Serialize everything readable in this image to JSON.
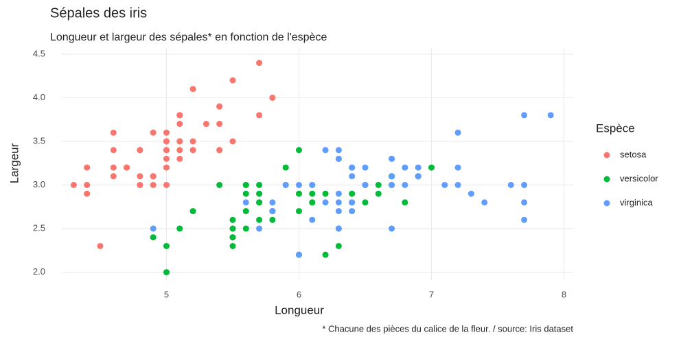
{
  "chart_data": {
    "type": "scatter",
    "title": "Sépales des iris",
    "subtitle": "Longueur et largeur des sépales* en fonction de l'espèce",
    "x_label": "Longueur",
    "y_label": "Largeur",
    "caption": "* Chacune des pièces du calice de la fleur. / source: Iris dataset",
    "legend_title": "Espèce",
    "xlim": [
      4.21,
      8.07
    ],
    "ylim": [
      1.91,
      4.57
    ],
    "xticks": [
      5,
      6,
      7,
      8
    ],
    "yticks": [
      {
        "value": 2,
        "label": "2.0"
      },
      2.5,
      {
        "value": 3,
        "label": "3.0"
      },
      3.5,
      {
        "value": 4,
        "label": "4.0"
      },
      4.5
    ],
    "grid": true,
    "series": [
      {
        "name": "setosa",
        "color": "#F8766D",
        "x": [
          5.1,
          4.9,
          4.7,
          4.6,
          5.0,
          5.4,
          4.6,
          5.0,
          4.4,
          4.9,
          5.4,
          4.8,
          4.8,
          4.3,
          5.8,
          5.7,
          5.4,
          5.1,
          5.7,
          5.1,
          5.4,
          5.1,
          4.6,
          5.1,
          4.8,
          5.0,
          5.0,
          5.2,
          5.2,
          4.7,
          4.8,
          5.4,
          5.2,
          5.5,
          4.9,
          5.0,
          5.5,
          4.9,
          4.4,
          5.1,
          5.0,
          4.5,
          4.4,
          5.0,
          5.1,
          4.8,
          5.1,
          4.6,
          5.3,
          5.0
        ],
        "values": [
          3.5,
          3.0,
          3.2,
          3.1,
          3.6,
          3.9,
          3.4,
          3.4,
          2.9,
          3.1,
          3.7,
          3.4,
          3.0,
          3.0,
          4.0,
          4.4,
          3.9,
          3.5,
          3.8,
          3.8,
          3.4,
          3.7,
          3.6,
          3.3,
          3.4,
          3.0,
          3.4,
          3.5,
          3.4,
          3.2,
          3.1,
          3.4,
          4.1,
          4.2,
          3.1,
          3.2,
          3.5,
          3.6,
          3.0,
          3.4,
          3.5,
          2.3,
          3.2,
          3.5,
          3.8,
          3.0,
          3.8,
          3.2,
          3.7,
          3.3
        ]
      },
      {
        "name": "versicolor",
        "color": "#00BA38",
        "x": [
          7.0,
          6.4,
          6.9,
          5.5,
          6.5,
          5.7,
          6.3,
          4.9,
          6.6,
          5.2,
          5.0,
          5.9,
          6.0,
          6.1,
          5.6,
          6.7,
          5.6,
          5.8,
          6.2,
          5.6,
          5.9,
          6.1,
          6.3,
          6.1,
          6.4,
          6.6,
          6.8,
          6.7,
          6.0,
          5.7,
          5.5,
          5.5,
          5.8,
          6.0,
          5.4,
          6.0,
          6.7,
          6.3,
          5.6,
          5.5,
          5.5,
          6.1,
          5.8,
          5.0,
          5.6,
          5.7,
          5.7,
          6.2,
          5.1,
          5.7
        ],
        "values": [
          3.2,
          3.2,
          3.1,
          2.3,
          2.8,
          2.8,
          3.3,
          2.4,
          2.9,
          2.7,
          2.0,
          3.0,
          2.2,
          2.9,
          2.9,
          3.1,
          3.0,
          2.7,
          2.2,
          2.5,
          3.2,
          2.8,
          2.5,
          2.8,
          2.9,
          3.0,
          2.8,
          3.0,
          2.9,
          2.6,
          2.4,
          2.4,
          2.7,
          2.7,
          3.0,
          3.4,
          3.1,
          2.3,
          3.0,
          2.5,
          2.6,
          3.0,
          2.6,
          2.3,
          2.7,
          3.0,
          2.9,
          2.9,
          2.5,
          2.8
        ]
      },
      {
        "name": "virginica",
        "color": "#619CFF",
        "x": [
          6.3,
          5.8,
          7.1,
          6.3,
          6.5,
          7.6,
          4.9,
          7.3,
          6.7,
          7.2,
          6.5,
          6.4,
          6.8,
          5.7,
          5.8,
          6.4,
          6.5,
          7.7,
          7.7,
          6.0,
          6.9,
          5.6,
          7.7,
          6.3,
          6.7,
          7.2,
          6.2,
          6.1,
          6.4,
          7.2,
          7.4,
          7.9,
          6.4,
          6.3,
          6.1,
          7.7,
          6.3,
          6.4,
          6.0,
          6.9,
          6.7,
          6.9,
          5.8,
          6.8,
          6.7,
          6.7,
          6.3,
          6.5,
          6.2,
          5.9
        ],
        "values": [
          3.3,
          2.7,
          3.0,
          2.9,
          3.0,
          3.0,
          2.5,
          2.9,
          2.5,
          3.6,
          3.2,
          2.7,
          3.0,
          2.5,
          2.8,
          3.2,
          3.0,
          3.8,
          2.6,
          2.2,
          3.2,
          2.8,
          2.8,
          2.7,
          3.3,
          3.2,
          2.8,
          3.0,
          2.8,
          3.0,
          2.8,
          3.8,
          2.8,
          2.8,
          2.6,
          3.0,
          3.4,
          3.1,
          3.0,
          3.1,
          3.1,
          3.1,
          2.7,
          3.2,
          3.3,
          3.0,
          2.5,
          3.0,
          3.4,
          3.0
        ]
      }
    ]
  }
}
